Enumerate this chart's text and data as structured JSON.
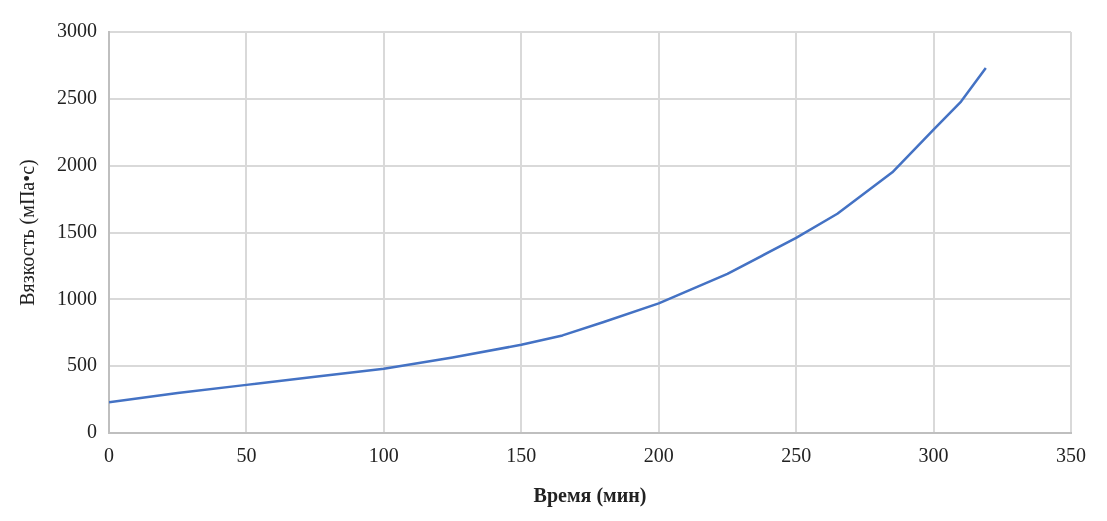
{
  "chart_data": {
    "type": "line",
    "xlabel": "Время (мин)",
    "ylabel": "Вязкость (мПа•с)",
    "x": [
      0,
      25,
      50,
      75,
      100,
      125,
      150,
      165,
      180,
      200,
      225,
      250,
      265,
      285,
      300,
      310,
      319
    ],
    "series": [
      {
        "color": "#4472c4",
        "values": [
          230,
          300,
          360,
          420,
          480,
          565,
          660,
          730,
          830,
          970,
          1190,
          1460,
          1640,
          1950,
          2270,
          2480,
          2730
        ]
      }
    ],
    "xlim": [
      0,
      350
    ],
    "xticks": [
      0,
      50,
      100,
      150,
      200,
      250,
      300,
      350
    ],
    "ylim": [
      0,
      3000
    ],
    "yticks": [
      0,
      500,
      1000,
      1500,
      2000,
      2500,
      3000
    ],
    "grid": true,
    "legend": false,
    "marker": "none",
    "line_style": "solid"
  }
}
